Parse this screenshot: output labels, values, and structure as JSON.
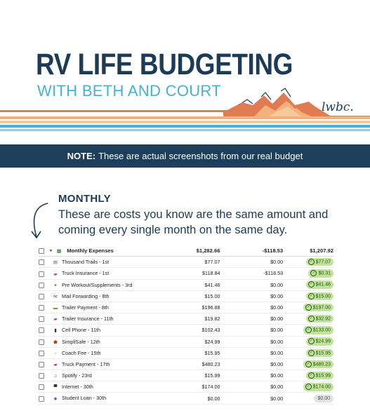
{
  "header": {
    "title": "RV LIFE BUDGETING",
    "subtitle": "WITH BETH AND COURT",
    "signature": "lwbc.",
    "colors": {
      "navy": "#1c3b57",
      "teal": "#3fb4d3",
      "orange": "#e07b53",
      "peach": "#f3b27d",
      "sand": "#f6c89a"
    }
  },
  "banner": {
    "label": "NOTE:",
    "text": "These are actual screenshots from our real budget"
  },
  "section": {
    "title": "MONTHLY",
    "description": "These are costs you know are the same amount and coming every single month on the same day."
  },
  "budget": {
    "group": {
      "icon": "money-icon",
      "label": "Monthly Expenses",
      "budgeted": "$1,282.66",
      "activity": "-$118.53",
      "available": "$1,207.92"
    },
    "rows": [
      {
        "icon": "money-icon",
        "label": "Thousand Trails - 1st",
        "budgeted": "$77.07",
        "activity": "$0.00",
        "available": "$77.07",
        "funded": true
      },
      {
        "icon": "truck-icon",
        "label": "Truck Insurance - 1st",
        "budgeted": "$118.84",
        "activity": "-$118.53",
        "available": "$0.31",
        "funded": true
      },
      {
        "icon": "supplement-icon",
        "label": "Pre Workout/Supplements - 3rd",
        "budgeted": "$41.46",
        "activity": "$0.00",
        "available": "$41.46",
        "funded": true
      },
      {
        "icon": "mailbox-icon",
        "label": "Mail Forwarding - 8th",
        "budgeted": "$15.00",
        "activity": "$0.00",
        "available": "$15.00",
        "funded": true
      },
      {
        "icon": "trailer-icon",
        "label": "Trailer Payment - 8th",
        "budgeted": "$196.88",
        "activity": "$0.00",
        "available": "$197.00",
        "funded": true
      },
      {
        "icon": "truck-icon",
        "label": "Trailer Insurance - 11th",
        "budgeted": "$19.82",
        "activity": "$0.00",
        "available": "$32.92",
        "funded": true
      },
      {
        "icon": "phone-icon",
        "label": "Cell Phone - 11th",
        "budgeted": "$102.43",
        "activity": "$0.00",
        "available": "$133.00",
        "funded": true
      },
      {
        "icon": "shield-icon",
        "label": "SimpliSafe - 12th",
        "budgeted": "$24.99",
        "activity": "$0.00",
        "available": "$24.99",
        "funded": true
      },
      {
        "icon": "ribbon-icon",
        "label": "Coach Fee - 15th",
        "budgeted": "$15.95",
        "activity": "$0.00",
        "available": "$15.95",
        "funded": true
      },
      {
        "icon": "truck-icon",
        "label": "Truck Payment - 17th",
        "budgeted": "$480.23",
        "activity": "$0.00",
        "available": "$480.23",
        "funded": true
      },
      {
        "icon": "music-icon",
        "label": "Spotify - 23rd",
        "budgeted": "$15.99",
        "activity": "$0.00",
        "available": "$15.99",
        "funded": true
      },
      {
        "icon": "computer-icon",
        "label": "Internet - 30th",
        "budgeted": "$174.00",
        "activity": "$0.00",
        "available": "$174.00",
        "funded": true
      },
      {
        "icon": "graduation-icon",
        "label": "Student Loan - 30th",
        "budgeted": "$0.00",
        "activity": "$0.00",
        "available": "$0.00",
        "funded": false
      }
    ]
  }
}
